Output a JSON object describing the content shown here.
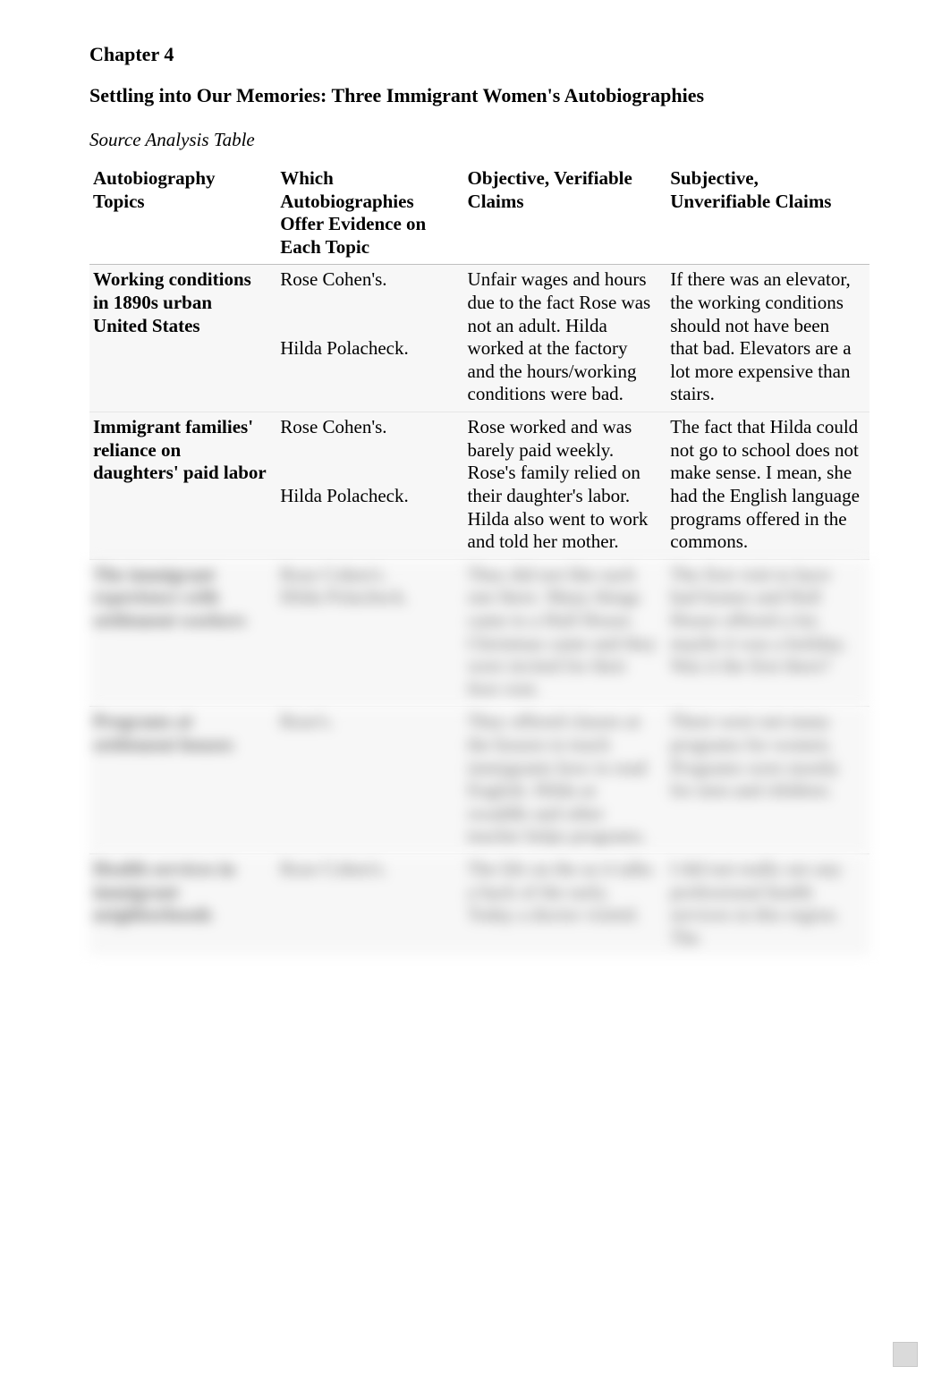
{
  "chapter_label": "Chapter 4",
  "subtitle": "Settling into Our Memories: Three Immigrant Women's Autobiographies",
  "table_title": "Source Analysis Table",
  "colors": {
    "page_bg": "#ffffff",
    "text": "#000000",
    "row_bg": "#f7f7f7",
    "header_border": "#bfbfbf",
    "row_border": "#e6e6e6",
    "blur_text": "#6a6a6a",
    "badge_bg": "#dadada",
    "badge_border": "#c9c9c9"
  },
  "typography": {
    "font_family": "Times New Roman",
    "body_pt": 16,
    "line_height": 1.22
  },
  "table": {
    "columns": [
      {
        "key": "topic",
        "label": "Autobiography Topics",
        "bold": true,
        "width_pct": 24
      },
      {
        "key": "which",
        "label": "Which Autobiographies Offer Evidence on Each Topic",
        "bold": true,
        "width_pct": 24
      },
      {
        "key": "objective",
        "label": "Objective, Verifiable Claims",
        "bold": true,
        "width_pct": 26
      },
      {
        "key": "subjective",
        "label": "Subjective, Unverifiable Claims",
        "bold": true,
        "width_pct": 26
      }
    ],
    "rows": [
      {
        "blurred": false,
        "cells": {
          "topic": "Working conditions in 1890s urban United States",
          "which": "Rose Cohen's.\n\nHilda Polacheck.",
          "objective": "Unfair wages and hours due to the fact Rose was not an adult. Hilda worked at the factory and the hours/working conditions were bad.",
          "subjective": "If there was an elevator, the working conditions should not have been that bad. Elevators are a lot more expensive than stairs."
        }
      },
      {
        "blurred": false,
        "cells": {
          "topic": "Immigrant families' reliance on daughters' paid labor",
          "which": "Rose Cohen's.\n\nHilda Polacheck.",
          "objective": "Rose worked and was barely paid weekly. Rose's family relied on their daughter's labor. Hilda also went to work and told her mother.",
          "subjective": "The fact that Hilda could not go to school does not make sense. I mean, she had the English language programs offered in the commons."
        }
      },
      {
        "blurred": true,
        "cells": {
          "topic": "The immigrant experience with settlement workers",
          "which": "Rose Cohen's.\nHilda Polacheck.",
          "objective": "They did not like each one there. Many things came to a Hull House. Christmas came and they were invited for their first visit.",
          "subjective": "The first visit to have had homes and Hull House offered a lot; maybe it was a holiday. Was it the first there?"
        }
      },
      {
        "blurred": true,
        "cells": {
          "topic": "Programs at settlement houses",
          "which": "Rose's.",
          "objective": "They offered classes at the houses to teach immigrants how to read English. Hilda as swaddle and other teacher helps programs.",
          "subjective": "There were not many programs for women. Programs were mostly for men and children."
        }
      },
      {
        "blurred": true,
        "cells": {
          "topic": "Health services in immigrant neighborhoods",
          "which": "Rose Cohen's.",
          "objective": "The life on the as it talks a back of the early. Today a doctor visited.",
          "subjective": "I did not really see any professional health services in this region. The"
        }
      }
    ]
  }
}
